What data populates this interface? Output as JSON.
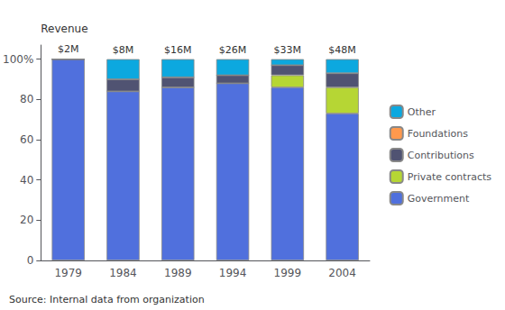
{
  "chart_data": {
    "type": "bar",
    "stacked": true,
    "categories": [
      "1979",
      "1984",
      "1989",
      "1994",
      "1999",
      "2004"
    ],
    "series": [
      {
        "name": "Government",
        "values": [
          100,
          84,
          86,
          88,
          86,
          73
        ]
      },
      {
        "name": "Private contracts",
        "values": [
          0,
          0,
          0,
          0,
          6,
          13
        ]
      },
      {
        "name": "Contributions",
        "values": [
          0,
          6,
          5,
          4,
          5,
          7
        ]
      },
      {
        "name": "Foundations",
        "values": [
          0,
          0,
          0,
          0,
          0,
          0
        ]
      },
      {
        "name": "Other",
        "values": [
          0,
          10,
          9,
          8,
          3,
          7
        ]
      }
    ],
    "ylabel": "Revenue",
    "ylim": [
      0,
      107
    ],
    "yticks": [
      0,
      20,
      40,
      60,
      80,
      {
        "value": 100,
        "label": "100%"
      }
    ],
    "grid": false,
    "legend": "right",
    "annotations": [
      {
        "x": "1979",
        "text": "$2M"
      },
      {
        "x": "1984",
        "text": "$8M"
      },
      {
        "x": "1989",
        "text": "$16M"
      },
      {
        "x": "1994",
        "text": "$26M"
      },
      {
        "x": "1999",
        "text": "$33M"
      },
      {
        "x": "2004",
        "text": "$48M"
      },
      {
        "text": "Source: Internal data from organization"
      }
    ]
  }
}
